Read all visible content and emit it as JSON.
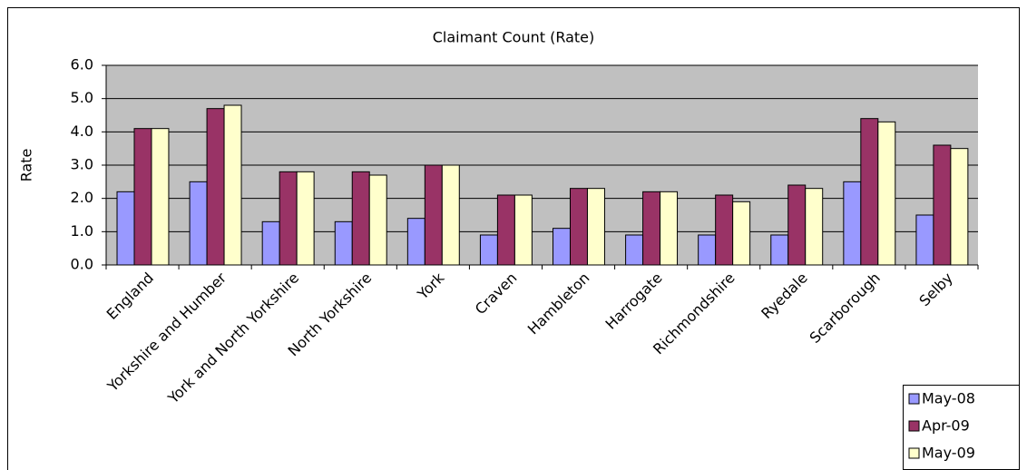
{
  "chart_data": {
    "type": "bar",
    "title": "Claimant Count (Rate)",
    "y_label": "Rate",
    "categories": [
      "England",
      "Yorkshire and Humber",
      "York and North Yorkshire",
      "North Yorkshire",
      "York",
      "Craven",
      "Hambleton",
      "Harrogate",
      "Richmondshire",
      "Ryedale",
      "Scarborough",
      "Selby"
    ],
    "series": [
      {
        "name": "May-08",
        "color": "#9999ff",
        "values": [
          2.2,
          2.5,
          1.3,
          1.3,
          1.4,
          0.9,
          1.1,
          0.9,
          0.9,
          0.9,
          2.5,
          1.5
        ]
      },
      {
        "name": "Apr-09",
        "color": "#993366",
        "values": [
          4.1,
          4.7,
          2.8,
          2.8,
          3.0,
          2.1,
          2.3,
          2.2,
          2.1,
          2.4,
          4.4,
          3.6
        ]
      },
      {
        "name": "May-09",
        "color": "#ffffcc",
        "values": [
          4.1,
          4.8,
          2.8,
          2.7,
          3.0,
          2.1,
          2.3,
          2.2,
          1.9,
          2.3,
          4.3,
          3.5
        ]
      }
    ],
    "ylim": [
      0,
      6
    ],
    "yticks": [
      {
        "value": 0,
        "label": "0.0"
      },
      {
        "value": 1,
        "label": "1.0"
      },
      {
        "value": 2,
        "label": "2.0"
      },
      {
        "value": 3,
        "label": "3.0"
      },
      {
        "value": 4,
        "label": "4.0"
      },
      {
        "value": 5,
        "label": "5.0"
      },
      {
        "value": 6,
        "label": "6.0"
      }
    ],
    "grid": true,
    "legend": "bottom-right",
    "plot_background": "#c0c0c0"
  }
}
